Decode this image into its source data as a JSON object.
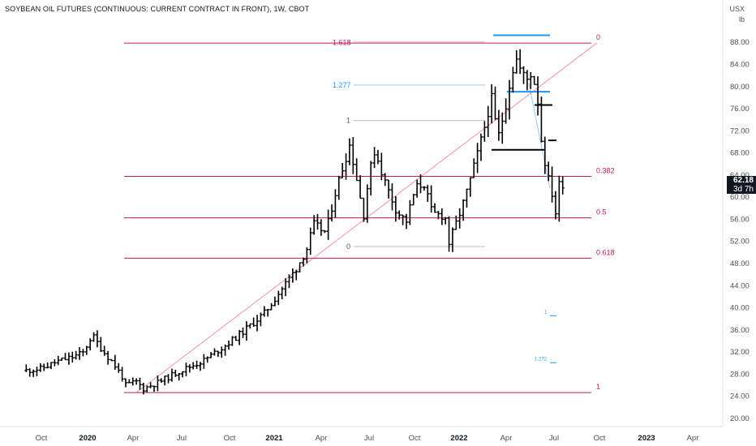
{
  "header": {
    "title": "SOYBEAN OIL FUTURES (CONTINUOUS: CURRENT CONTRACT IN FRONT), 1W, CBOT"
  },
  "price_axis": {
    "currency": "USX",
    "unit": "lb",
    "last_price": "62.18",
    "countdown": "3d 7h",
    "last_price_bg": "#131722"
  },
  "colors": {
    "bars": "#000000",
    "fib_magenta": "#c2185b",
    "fib_blue": "#2196f3",
    "fib_gray": "#9e9e9e",
    "trend_pink": "#f48fb1"
  },
  "chart_data": {
    "type": "ohlc",
    "timeframe": "1W",
    "x_axis_labels": [
      "Oct",
      "2020",
      "Apr",
      "Jul",
      "Oct",
      "2021",
      "Apr",
      "Jul",
      "Oct",
      "2022",
      "Apr",
      "Jul",
      "Oct",
      "2023",
      "Apr"
    ],
    "y_axis_labels": [
      "88.00",
      "84.00",
      "80.00",
      "76.00",
      "72.00",
      "68.00",
      "64.00",
      "60.00",
      "56.00",
      "52.00",
      "48.00",
      "44.00",
      "40.00",
      "36.00",
      "32.00",
      "28.00",
      "24.00",
      "20.00"
    ],
    "ylim": [
      19.0,
      92.5
    ],
    "close_path": [
      [
        "2019-09-02",
        28.6
      ],
      [
        "2019-10-01",
        28.9
      ],
      [
        "2019-11-01",
        30.2
      ],
      [
        "2019-12-01",
        31.0
      ],
      [
        "2019-12-23",
        31.8
      ],
      [
        "2020-01-06",
        34.3
      ],
      [
        "2020-01-13",
        34.6
      ],
      [
        "2020-02-01",
        32.0
      ],
      [
        "2020-02-20",
        30.0
      ],
      [
        "2020-03-09",
        27.5
      ],
      [
        "2020-03-16",
        25.9
      ],
      [
        "2020-04-06",
        26.6
      ],
      [
        "2020-04-20",
        25.3
      ],
      [
        "2020-05-20",
        26.5
      ],
      [
        "2020-07-01",
        28.5
      ],
      [
        "2020-08-15",
        30.3
      ],
      [
        "2020-10-01",
        33.3
      ],
      [
        "2020-11-01",
        35.5
      ],
      [
        "2020-12-15",
        39.0
      ],
      [
        "2021-01-15",
        43.0
      ],
      [
        "2021-02-15",
        47.0
      ],
      [
        "2021-03-08",
        50.5
      ],
      [
        "2021-03-22",
        55.0
      ],
      [
        "2021-04-15",
        53.5
      ],
      [
        "2021-05-01",
        60.0
      ],
      [
        "2021-05-20",
        66.0
      ],
      [
        "2021-06-01",
        69.5
      ],
      [
        "2021-06-15",
        63.0
      ],
      [
        "2021-06-28",
        56.5
      ],
      [
        "2021-07-08",
        63.5
      ],
      [
        "2021-07-20",
        68.5
      ],
      [
        "2021-08-10",
        62.5
      ],
      [
        "2021-09-01",
        57.5
      ],
      [
        "2021-09-20",
        55.5
      ],
      [
        "2021-10-08",
        61.5
      ],
      [
        "2021-10-25",
        62.5
      ],
      [
        "2021-11-10",
        57.0
      ],
      [
        "2021-12-06",
        56.5
      ],
      [
        "2021-12-13",
        51.5
      ],
      [
        "2021-12-27",
        55.0
      ],
      [
        "2022-01-15",
        60.0
      ],
      [
        "2022-02-01",
        65.5
      ],
      [
        "2022-02-20",
        72.0
      ],
      [
        "2022-03-07",
        78.0
      ],
      [
        "2022-03-20",
        70.5
      ],
      [
        "2022-04-04",
        76.5
      ],
      [
        "2022-04-15",
        82.0
      ],
      [
        "2022-04-25",
        85.0
      ],
      [
        "2022-05-03",
        83.0
      ],
      [
        "2022-05-15",
        81.0
      ],
      [
        "2022-05-25",
        82.5
      ],
      [
        "2022-06-05",
        79.0
      ],
      [
        "2022-06-14",
        70.0
      ],
      [
        "2022-06-25",
        64.0
      ],
      [
        "2022-07-05",
        60.5
      ],
      [
        "2022-07-13",
        56.5
      ],
      [
        "2022-07-20",
        63.5
      ],
      [
        "2022-07-27",
        62.2
      ]
    ],
    "fib_retracement_major": {
      "levels": [
        {
          "label": "1",
          "value": 24.6
        },
        {
          "label": "0.618",
          "value": 48.9
        },
        {
          "label": "0.5",
          "value": 56.2
        },
        {
          "label": "0.382",
          "value": 63.7
        },
        {
          "label": "0",
          "value": 87.8
        },
        {
          "label": "1.618",
          "value": 87.8
        }
      ],
      "trend_line": {
        "from": [
          "2020-04-06",
          24.6
        ],
        "to": [
          "2022-10-01",
          87.8
        ]
      }
    },
    "fib_extension_gray": {
      "levels": [
        {
          "label": "1",
          "value": 73.8
        },
        {
          "label": "1.277",
          "value": 80.2
        },
        {
          "label": "0",
          "value": 51.0
        }
      ]
    },
    "fib_small": {
      "levels": [
        {
          "label": "1",
          "value": 38.5
        },
        {
          "label": "1.272",
          "value": 30.0
        }
      ]
    },
    "steps_blue": [
      89.2,
      79.0
    ],
    "steps_black": [
      76.6,
      68.5,
      70.2
    ]
  }
}
